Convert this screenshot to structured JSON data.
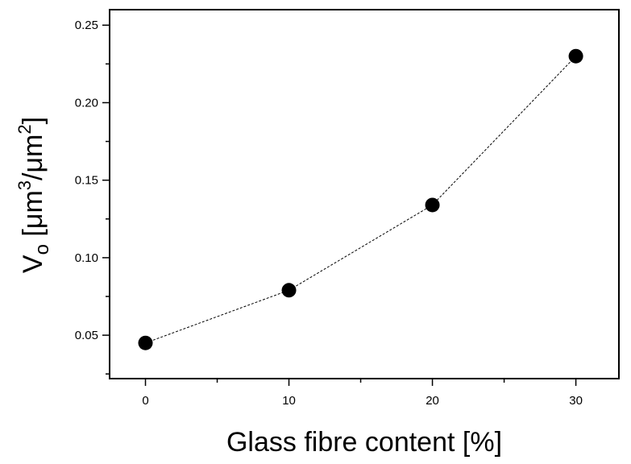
{
  "chart_data": {
    "type": "scatter",
    "x": [
      0,
      10,
      20,
      30
    ],
    "y": [
      0.045,
      0.079,
      0.134,
      0.23
    ],
    "xlim": [
      -2.5,
      33
    ],
    "ylim": [
      0.022,
      0.26
    ],
    "x_ticks": [
      0,
      10,
      20,
      30
    ],
    "x_tick_labels": [
      "0",
      "10",
      "20",
      "30"
    ],
    "y_ticks": [
      0.05,
      0.1,
      0.15,
      0.2,
      0.25
    ],
    "y_tick_labels": [
      "0.05",
      "0.10",
      "0.15",
      "0.20",
      "0.25"
    ],
    "x_minor_step": 5,
    "y_minor_step": 0.025,
    "xlabel": "Glass fibre content  [%]",
    "ylabel": {
      "main": "V",
      "sub": "o",
      "unit_open": " [μm",
      "sup1": "3",
      "unit_mid": "/μm",
      "sup2": "2",
      "unit_close": "]"
    },
    "connector": "dashed",
    "marker": "filled-circle",
    "marker_color": "#000000",
    "line_color": "#000000",
    "grid": false,
    "legend": "none"
  }
}
